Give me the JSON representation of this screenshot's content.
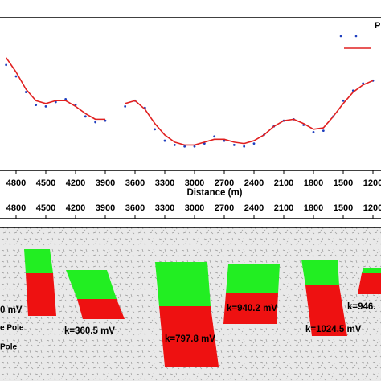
{
  "chart_data": {
    "type": "line",
    "legend_text": "P",
    "xlabel": "Distance (m)",
    "x": [
      4900,
      4800,
      4700,
      4600,
      4500,
      4400,
      4300,
      4200,
      4100,
      4000,
      3900,
      3800,
      3700,
      3600,
      3500,
      3400,
      3300,
      3200,
      3100,
      3000,
      2900,
      2800,
      2700,
      2600,
      2500,
      2400,
      2300,
      2200,
      2100,
      2000,
      1900,
      1800,
      1700,
      1600,
      1500,
      1400,
      1300,
      1200
    ],
    "xlim": [
      4962,
      1119
    ],
    "xticks": [
      4800,
      4500,
      4200,
      3900,
      3600,
      3300,
      3000,
      2700,
      2400,
      2100,
      1800,
      1500,
      1200
    ],
    "ylim": [
      0,
      100
    ],
    "series": [
      {
        "style": "points",
        "color": "#1f3fbf",
        "values": [
          67,
          59,
          48,
          39,
          38,
          41,
          43,
          39,
          31,
          27,
          28,
          null,
          38,
          42,
          37,
          22,
          14,
          11,
          10,
          10,
          12,
          17,
          14,
          11,
          10,
          12,
          18,
          24,
          28,
          29,
          25,
          20,
          21,
          31,
          42,
          49,
          54,
          56
        ]
      },
      {
        "style": "line",
        "color": "#e02020",
        "values": [
          72,
          62,
          50,
          42,
          40,
          42,
          42,
          38,
          33,
          29,
          29,
          null,
          40,
          42,
          36,
          26,
          18,
          13,
          11,
          11,
          13,
          15,
          15,
          13,
          12,
          14,
          18,
          24,
          28,
          29,
          26,
          22,
          23,
          31,
          40,
          48,
          53,
          56
        ]
      }
    ],
    "annotations": [
      "0 mV",
      "k=360.5 mV",
      "k=797.8 mV",
      "k=940.2 mV",
      "k=1024.5 mV",
      "k=946.",
      "e Pole",
      "Pole"
    ]
  }
}
